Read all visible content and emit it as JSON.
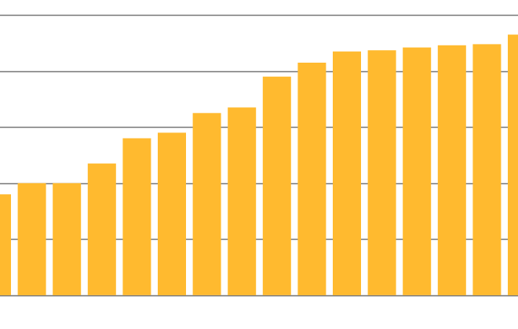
{
  "chart_data": {
    "type": "bar",
    "values": [
      1.8,
      2.0,
      2.0,
      2.35,
      2.8,
      2.9,
      3.25,
      3.35,
      3.9,
      4.15,
      4.35,
      4.37,
      4.42,
      4.46,
      4.48,
      4.65
    ],
    "ylim": [
      -0.1,
      5.1
    ],
    "gridlines": [
      0,
      1,
      2,
      3,
      4,
      5
    ],
    "grid": true,
    "legend": "none",
    "colors": {
      "bar": "#FFBA2F",
      "gridline": "#777777",
      "baseline": "#cfcfcf",
      "background": "#ffffff"
    }
  }
}
